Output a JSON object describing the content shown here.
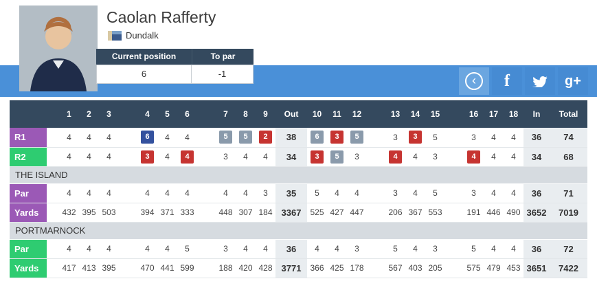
{
  "player": {
    "name": "Caolan Rafferty",
    "club": "Dundalk"
  },
  "position_panel": {
    "current_position_label": "Current position",
    "to_par_label": "To par",
    "current_position": "6",
    "to_par": "-1"
  },
  "social": {
    "back_glyph": "‹",
    "facebook_glyph": "f",
    "gplus_glyph": "g+"
  },
  "colors": {
    "band_blue": "#4a90d8",
    "header_navy": "#34495e",
    "purple": "#9b59b6",
    "green": "#2ecc71",
    "birdie_red": "#c63431",
    "bogey_gray": "#8a9aab",
    "double_bogey_blue": "#33519e"
  },
  "scorecard": {
    "columns": [
      "1",
      "2",
      "3",
      "4",
      "5",
      "6",
      "7",
      "8",
      "9",
      "Out",
      "10",
      "11",
      "12",
      "13",
      "14",
      "15",
      "16",
      "17",
      "18",
      "In",
      "Total"
    ],
    "sum_columns": [
      "Out",
      "In",
      "Total"
    ],
    "rows": [
      {
        "type": "score",
        "label": "R1",
        "color": "purple",
        "cells": [
          {
            "v": "4"
          },
          {
            "v": "4"
          },
          {
            "v": "4"
          },
          {
            "v": "6",
            "hl": "double_bogey"
          },
          {
            "v": "4"
          },
          {
            "v": "4"
          },
          {
            "v": "5",
            "hl": "bogey"
          },
          {
            "v": "5",
            "hl": "bogey"
          },
          {
            "v": "2",
            "hl": "birdie"
          },
          {
            "v": "38"
          },
          {
            "v": "6",
            "hl": "bogey"
          },
          {
            "v": "3",
            "hl": "birdie"
          },
          {
            "v": "5",
            "hl": "bogey"
          },
          {
            "v": "3"
          },
          {
            "v": "3",
            "hl": "birdie"
          },
          {
            "v": "5"
          },
          {
            "v": "3"
          },
          {
            "v": "4"
          },
          {
            "v": "4"
          },
          {
            "v": "36"
          },
          {
            "v": "74"
          }
        ]
      },
      {
        "type": "score",
        "label": "R2",
        "color": "green",
        "cells": [
          {
            "v": "4"
          },
          {
            "v": "4"
          },
          {
            "v": "4"
          },
          {
            "v": "3",
            "hl": "birdie"
          },
          {
            "v": "4"
          },
          {
            "v": "4",
            "hl": "birdie"
          },
          {
            "v": "3"
          },
          {
            "v": "4"
          },
          {
            "v": "4"
          },
          {
            "v": "34"
          },
          {
            "v": "3",
            "hl": "birdie"
          },
          {
            "v": "5",
            "hl": "bogey"
          },
          {
            "v": "3"
          },
          {
            "v": "4",
            "hl": "birdie"
          },
          {
            "v": "4"
          },
          {
            "v": "3"
          },
          {
            "v": "4",
            "hl": "birdie"
          },
          {
            "v": "4"
          },
          {
            "v": "4"
          },
          {
            "v": "34"
          },
          {
            "v": "68"
          }
        ]
      },
      {
        "type": "section",
        "label": "THE ISLAND"
      },
      {
        "type": "score",
        "label": "Par",
        "color": "purple",
        "cells": [
          {
            "v": "4"
          },
          {
            "v": "4"
          },
          {
            "v": "4"
          },
          {
            "v": "4"
          },
          {
            "v": "4"
          },
          {
            "v": "4"
          },
          {
            "v": "4"
          },
          {
            "v": "4"
          },
          {
            "v": "3"
          },
          {
            "v": "35"
          },
          {
            "v": "5"
          },
          {
            "v": "4"
          },
          {
            "v": "4"
          },
          {
            "v": "3"
          },
          {
            "v": "4"
          },
          {
            "v": "5"
          },
          {
            "v": "3"
          },
          {
            "v": "4"
          },
          {
            "v": "4"
          },
          {
            "v": "36"
          },
          {
            "v": "71"
          }
        ]
      },
      {
        "type": "score",
        "label": "Yards",
        "color": "purple",
        "cells": [
          {
            "v": "432"
          },
          {
            "v": "395"
          },
          {
            "v": "503"
          },
          {
            "v": "394"
          },
          {
            "v": "371"
          },
          {
            "v": "333"
          },
          {
            "v": "448"
          },
          {
            "v": "307"
          },
          {
            "v": "184"
          },
          {
            "v": "3367"
          },
          {
            "v": "525"
          },
          {
            "v": "427"
          },
          {
            "v": "447"
          },
          {
            "v": "206"
          },
          {
            "v": "367"
          },
          {
            "v": "553"
          },
          {
            "v": "191"
          },
          {
            "v": "446"
          },
          {
            "v": "490"
          },
          {
            "v": "3652"
          },
          {
            "v": "7019"
          }
        ]
      },
      {
        "type": "section",
        "label": "PORTMARNOCK"
      },
      {
        "type": "score",
        "label": "Par",
        "color": "green",
        "cells": [
          {
            "v": "4"
          },
          {
            "v": "4"
          },
          {
            "v": "4"
          },
          {
            "v": "4"
          },
          {
            "v": "4"
          },
          {
            "v": "5"
          },
          {
            "v": "3"
          },
          {
            "v": "4"
          },
          {
            "v": "4"
          },
          {
            "v": "36"
          },
          {
            "v": "4"
          },
          {
            "v": "4"
          },
          {
            "v": "3"
          },
          {
            "v": "5"
          },
          {
            "v": "4"
          },
          {
            "v": "3"
          },
          {
            "v": "5"
          },
          {
            "v": "4"
          },
          {
            "v": "4"
          },
          {
            "v": "36"
          },
          {
            "v": "72"
          }
        ]
      },
      {
        "type": "score",
        "label": "Yards",
        "color": "green",
        "cells": [
          {
            "v": "417"
          },
          {
            "v": "413"
          },
          {
            "v": "395"
          },
          {
            "v": "470"
          },
          {
            "v": "441"
          },
          {
            "v": "599"
          },
          {
            "v": "188"
          },
          {
            "v": "420"
          },
          {
            "v": "428"
          },
          {
            "v": "3771"
          },
          {
            "v": "366"
          },
          {
            "v": "425"
          },
          {
            "v": "178"
          },
          {
            "v": "567"
          },
          {
            "v": "403"
          },
          {
            "v": "205"
          },
          {
            "v": "575"
          },
          {
            "v": "479"
          },
          {
            "v": "453"
          },
          {
            "v": "3651"
          },
          {
            "v": "7422"
          }
        ]
      }
    ]
  }
}
